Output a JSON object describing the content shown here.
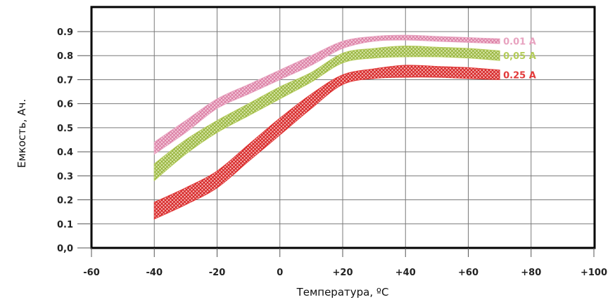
{
  "chart_data": {
    "type": "line",
    "title": "",
    "xlabel": "Температура, ºC",
    "ylabel": "Емкость, Ач.",
    "xlim": [
      -60,
      100
    ],
    "ylim": [
      0,
      0.95
    ],
    "grid": true,
    "x_ticks": [
      "-60",
      "-40",
      "-20",
      "0",
      "+20",
      "+40",
      "+60",
      "+80",
      "+100"
    ],
    "x_tick_values": [
      -60,
      -40,
      -20,
      0,
      20,
      40,
      60,
      80,
      100
    ],
    "y_ticks": [
      "0,0",
      "0.1",
      "0.2",
      "0.3",
      "0.4",
      "0.5",
      "0.6",
      "0.7",
      "0.8",
      "0.9"
    ],
    "y_tick_values": [
      0,
      0.1,
      0.2,
      0.3,
      0.4,
      0.5,
      0.6,
      0.7,
      0.8,
      0.9
    ],
    "series": [
      {
        "name": "0.01 A",
        "color": "#e8a3c0",
        "x": [
          -40,
          -30,
          -20,
          -10,
          0,
          10,
          20,
          30,
          40,
          50,
          60,
          70
        ],
        "upper": [
          0.44,
          0.53,
          0.62,
          0.68,
          0.74,
          0.8,
          0.86,
          0.88,
          0.885,
          0.88,
          0.875,
          0.87
        ],
        "lower": [
          0.39,
          0.48,
          0.58,
          0.64,
          0.7,
          0.76,
          0.83,
          0.86,
          0.865,
          0.86,
          0.855,
          0.85
        ]
      },
      {
        "name": "0,05 A",
        "color": "#b4cc5a",
        "x": [
          -40,
          -30,
          -20,
          -10,
          0,
          10,
          20,
          30,
          40,
          50,
          60,
          70
        ],
        "upper": [
          0.35,
          0.45,
          0.53,
          0.6,
          0.67,
          0.73,
          0.81,
          0.83,
          0.84,
          0.835,
          0.83,
          0.82
        ],
        "lower": [
          0.28,
          0.39,
          0.48,
          0.55,
          0.62,
          0.69,
          0.77,
          0.79,
          0.795,
          0.795,
          0.79,
          0.78
        ]
      },
      {
        "name": "0.25 A",
        "color": "#e23a3a",
        "x": [
          -40,
          -30,
          -20,
          -10,
          0,
          10,
          20,
          30,
          40,
          50,
          60,
          70
        ],
        "upper": [
          0.19,
          0.25,
          0.32,
          0.43,
          0.54,
          0.64,
          0.72,
          0.745,
          0.76,
          0.755,
          0.75,
          0.74
        ],
        "lower": [
          0.12,
          0.18,
          0.25,
          0.36,
          0.47,
          0.58,
          0.68,
          0.705,
          0.71,
          0.71,
          0.705,
          0.7
        ]
      }
    ]
  }
}
